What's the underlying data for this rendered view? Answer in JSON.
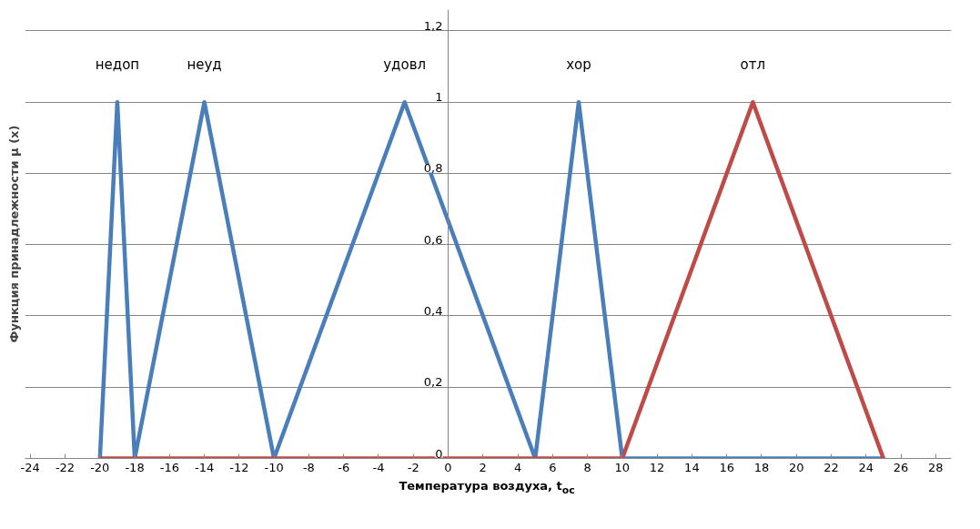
{
  "chart_data": {
    "type": "line",
    "xlabel": "Температура воздуха, t$_{oc}$",
    "ylabel": "Функция принадлежности μ (x)",
    "series": [
      {
        "color": "#4a7ebb",
        "x": [
          -20,
          -19,
          -18,
          -14,
          -10,
          -2.5,
          5,
          7.5,
          10,
          25
        ],
        "values": [
          0,
          1,
          0,
          1,
          0,
          1,
          0,
          1,
          0,
          0
        ]
      },
      {
        "color": "#be4b48",
        "x": [
          -20,
          10,
          17.5,
          25
        ],
        "values": [
          0,
          0,
          1,
          0
        ]
      }
    ],
    "annotations": [
      {
        "text": "недоп",
        "x": -19,
        "y": 1
      },
      {
        "text": "неуд",
        "x": -14,
        "y": 1
      },
      {
        "text": "удовл",
        "x": -2.5,
        "y": 1
      },
      {
        "text": "хор",
        "x": 7.5,
        "y": 1
      },
      {
        "text": "отл",
        "x": 17.5,
        "y": 1
      }
    ],
    "xlim": [
      -24.3,
      28.9
    ],
    "ylim": [
      0,
      1.26
    ],
    "xticks": [
      -24,
      -22,
      -20,
      -18,
      -16,
      -14,
      -12,
      -10,
      -8,
      -6,
      -4,
      -2,
      0,
      2,
      4,
      6,
      8,
      10,
      12,
      14,
      16,
      18,
      20,
      22,
      24,
      26,
      28
    ],
    "yticks": [
      0,
      {
        "value": 0.2,
        "label": "0,2"
      },
      {
        "value": 0.4,
        "label": "0,4"
      },
      {
        "value": 0.6,
        "label": "0,6"
      },
      {
        "value": 0.8,
        "label": "0,8"
      },
      1,
      {
        "value": 1.2,
        "label": "1,2"
      }
    ],
    "grid": "y",
    "marker": "none",
    "line_style": "solid"
  }
}
